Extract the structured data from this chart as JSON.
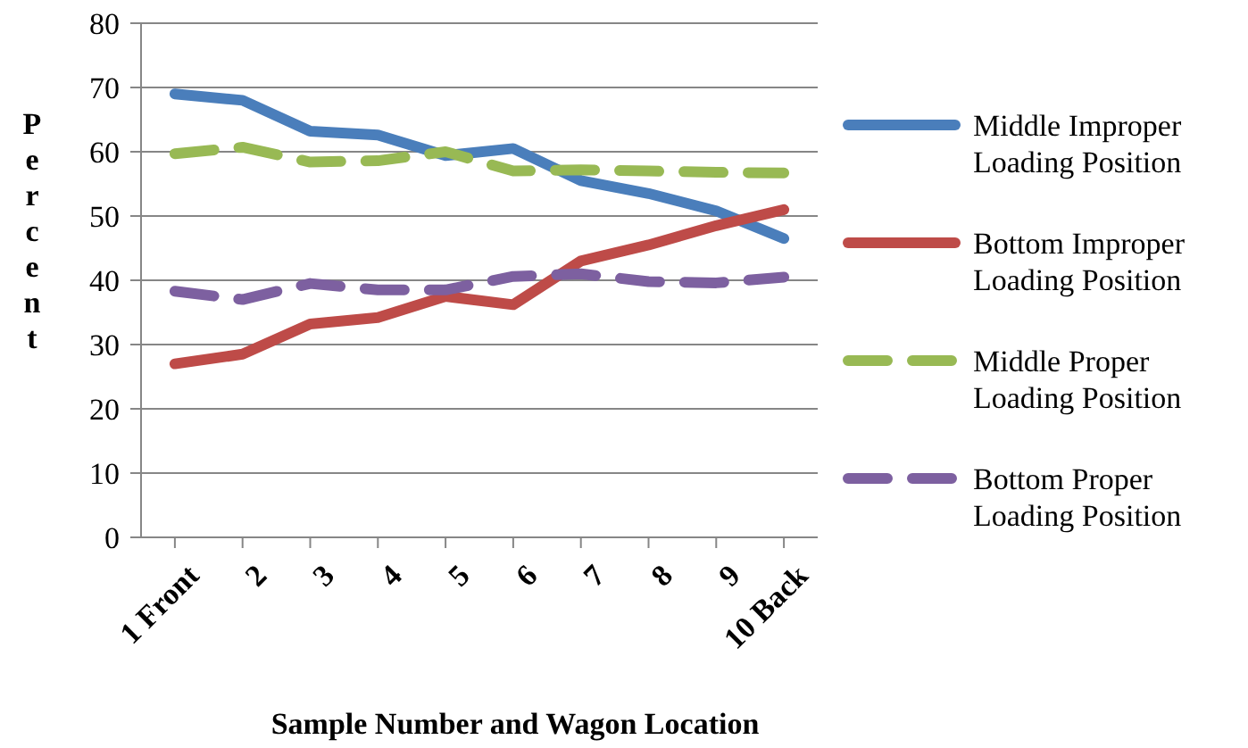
{
  "chart_data": {
    "type": "line",
    "xlabel": "Sample Number and Wagon Location",
    "ylabel": "Percent",
    "categories": [
      "1 Front",
      "2",
      "3",
      "4",
      "5",
      "6",
      "7",
      "8",
      "9",
      "10 Back"
    ],
    "ylim": [
      0,
      80
    ],
    "yticks": [
      0,
      10,
      20,
      30,
      40,
      50,
      60,
      70,
      80
    ],
    "grid": "y",
    "legend": "right",
    "marker": "none",
    "series": [
      {
        "name": "Middle Improper Loading Position",
        "color": "#4a7ebb",
        "line_style": "solid",
        "values": [
          69,
          68,
          63.2,
          62.6,
          59.4,
          60.5,
          55.5,
          53.5,
          50.8,
          46.5
        ]
      },
      {
        "name": "Bottom Improper Loading Position",
        "color": "#be4b48",
        "line_style": "solid",
        "values": [
          27,
          28.5,
          33.2,
          34.2,
          37.5,
          36.2,
          43,
          45.5,
          48.5,
          51
        ]
      },
      {
        "name": "Middle Proper Loading Position",
        "color": "#98b954",
        "line_style": "dashed",
        "values": [
          59.7,
          60.7,
          58.4,
          58.6,
          60,
          57,
          57.2,
          57,
          56.8,
          56.7
        ]
      },
      {
        "name": "Bottom Proper Loading Position",
        "color": "#7d60a0",
        "line_style": "dashed",
        "values": [
          38.3,
          37,
          39.5,
          38.5,
          38.5,
          40.6,
          41,
          39.8,
          39.6,
          40.5
        ]
      }
    ]
  }
}
